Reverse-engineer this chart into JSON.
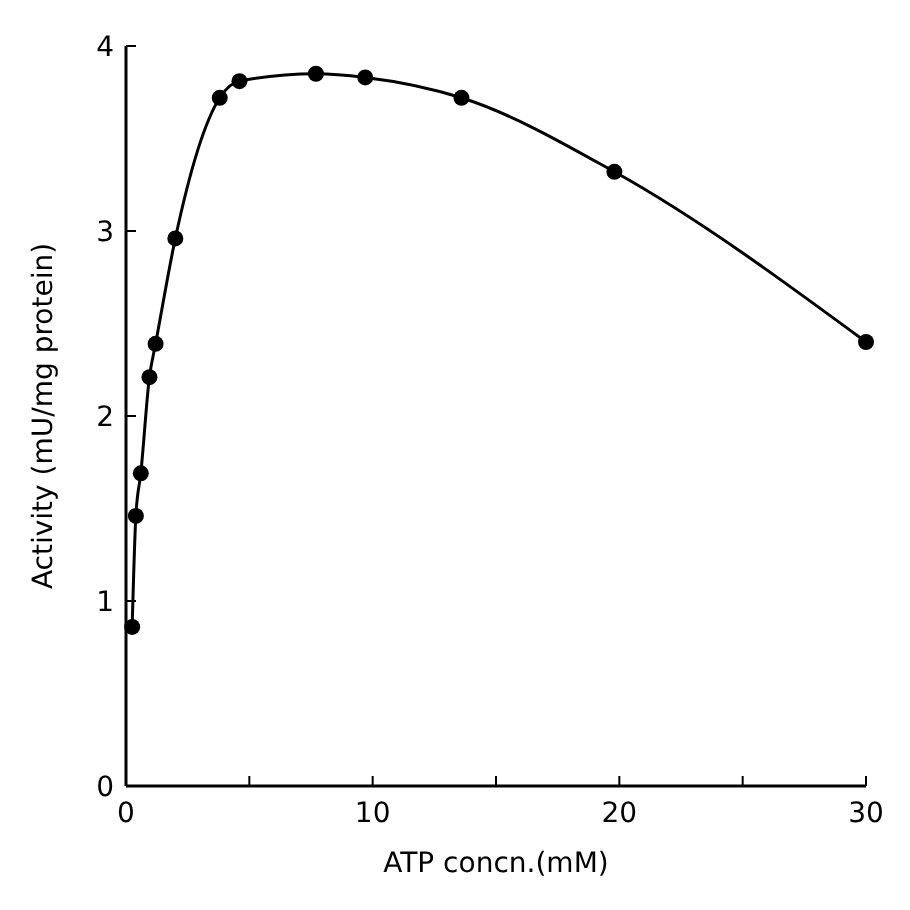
{
  "chart_data": {
    "type": "line",
    "xlabel": "ATP concn.(mM)",
    "ylabel": "Activity (mU/mg protein)",
    "x": [
      0.25,
      0.4,
      0.6,
      0.95,
      1.2,
      2,
      3.8,
      4.6,
      7.7,
      9.7,
      13.6,
      19.8,
      30
    ],
    "series": [
      {
        "color": "#000000",
        "values": [
          0.86,
          1.46,
          1.69,
          2.21,
          2.39,
          2.96,
          3.72,
          3.81,
          3.85,
          3.83,
          3.72,
          3.32,
          2.4
        ]
      }
    ],
    "xlim": [
      0,
      30
    ],
    "ylim": [
      0,
      4
    ],
    "xticks": [
      0,
      {
        "value": 5,
        "label": null
      },
      10,
      {
        "value": 15,
        "label": null
      },
      20,
      {
        "value": 25,
        "label": null
      },
      30
    ],
    "yticks": [
      0,
      1,
      2,
      3,
      4
    ],
    "marker": "circle",
    "line_style": "solid"
  }
}
